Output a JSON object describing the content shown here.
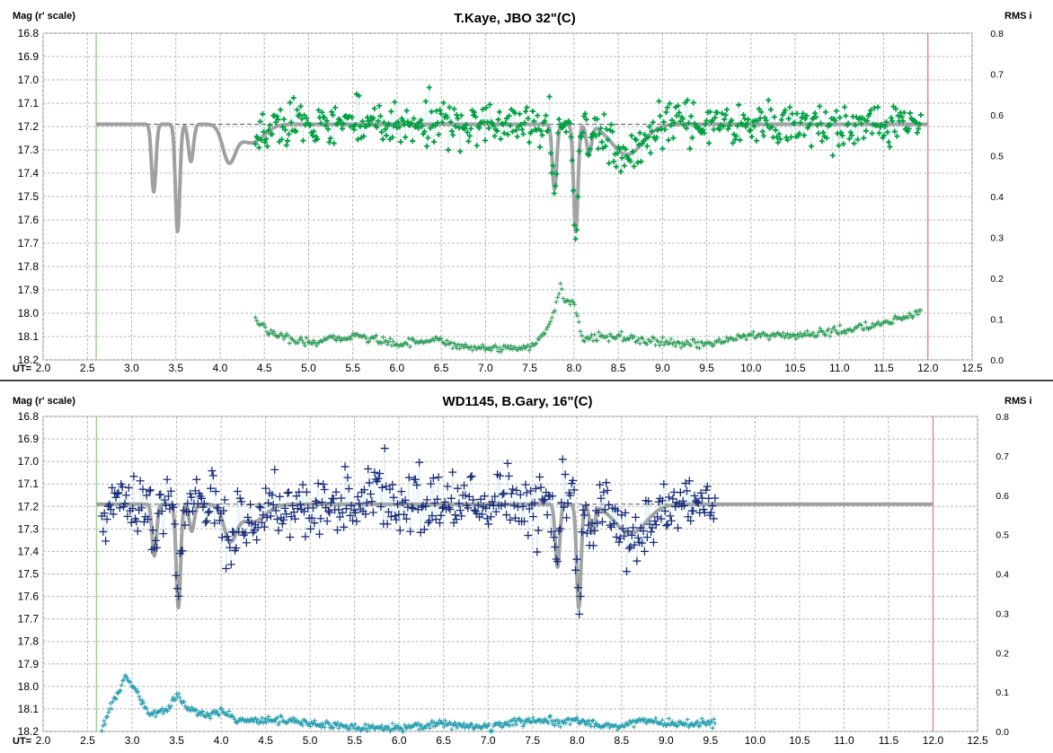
{
  "chart_data": [
    {
      "type": "scatter",
      "title": "T.Kaye, JBO 32\"(C)",
      "ylabel": "Mag (r' scale)",
      "ylabel_right": "RMS i",
      "xlabel": "UT=",
      "xlim": [
        2.0,
        12.5
      ],
      "ylim": [
        16.8,
        18.2
      ],
      "y_inverted": true,
      "y2lim": [
        0.0,
        0.8
      ],
      "grid": true,
      "x_ticks": [
        "2.0",
        "2.5",
        "3.0",
        "3.5",
        "4.0",
        "4.5",
        "5.0",
        "5.5",
        "6.0",
        "6.5",
        "7.0",
        "7.5",
        "8.0",
        "8.5",
        "9.0",
        "9.5",
        "10.0",
        "10.5",
        "11.0",
        "11.5",
        "12.0",
        "12.5"
      ],
      "y_ticks": [
        "16.8",
        "16.9",
        "17.0",
        "17.1",
        "17.2",
        "17.3",
        "17.4",
        "17.5",
        "17.6",
        "17.7",
        "17.8",
        "17.9",
        "18.0",
        "18.1",
        "18.2"
      ],
      "y2_ticks": [
        "0.0",
        "0.1",
        "0.2",
        "0.3",
        "0.4",
        "0.5",
        "0.6",
        "0.7",
        "0.8"
      ],
      "start_ut": 2.6,
      "end_ut": 12.0,
      "reference_mag": 17.19,
      "model": {
        "baseline": 17.19,
        "dips": [
          {
            "ut": 3.25,
            "depth": 0.29,
            "width": 0.035
          },
          {
            "ut": 3.52,
            "depth": 0.46,
            "width": 0.035
          },
          {
            "ut": 3.67,
            "depth": 0.16,
            "width": 0.04
          },
          {
            "ut": 4.1,
            "depth": 0.15,
            "width": 0.1
          },
          {
            "ut": 4.35,
            "depth": 0.08,
            "width": 0.2
          },
          {
            "ut": 7.78,
            "depth": 0.28,
            "width": 0.035
          },
          {
            "ut": 8.02,
            "depth": 0.46,
            "width": 0.035
          },
          {
            "ut": 8.17,
            "depth": 0.12,
            "width": 0.04
          },
          {
            "ut": 8.6,
            "depth": 0.13,
            "width": 0.25
          }
        ]
      },
      "series": [
        {
          "kind": "mag",
          "ut_start": 4.4,
          "ut_end": 11.92,
          "count": 560,
          "scatter": 0.045,
          "color": "#00a040",
          "marker": "+"
        },
        {
          "kind": "rms",
          "ut_start": 4.4,
          "ut_end": 11.92,
          "count": 470,
          "color": "#2e9e58",
          "marker": "+",
          "profile": [
            [
              4.4,
              0.1
            ],
            [
              4.6,
              0.06
            ],
            [
              4.8,
              0.05
            ],
            [
              5.0,
              0.04
            ],
            [
              5.5,
              0.06
            ],
            [
              6.0,
              0.04
            ],
            [
              6.4,
              0.05
            ],
            [
              6.8,
              0.03
            ],
            [
              7.2,
              0.03
            ],
            [
              7.5,
              0.03
            ],
            [
              7.65,
              0.06
            ],
            [
              7.75,
              0.1
            ],
            [
              7.85,
              0.18
            ],
            [
              7.9,
              0.14
            ],
            [
              8.0,
              0.14
            ],
            [
              8.1,
              0.05
            ],
            [
              8.5,
              0.06
            ],
            [
              8.7,
              0.05
            ],
            [
              9.0,
              0.04
            ],
            [
              9.5,
              0.04
            ],
            [
              10.0,
              0.06
            ],
            [
              10.5,
              0.06
            ],
            [
              11.0,
              0.07
            ],
            [
              11.5,
              0.09
            ],
            [
              11.7,
              0.1
            ],
            [
              11.92,
              0.12
            ]
          ]
        }
      ]
    },
    {
      "type": "scatter",
      "title": "WD1145, B.Gary, 16\"(C)",
      "ylabel": "Mag (r' scale)",
      "ylabel_right": "RMS i",
      "xlabel": "UT=",
      "xlim": [
        2.0,
        12.5
      ],
      "ylim": [
        16.8,
        18.2
      ],
      "y_inverted": true,
      "y2lim": [
        0.0,
        0.8
      ],
      "grid": true,
      "x_ticks": [
        "2.0",
        "2.5",
        "3.0",
        "3.5",
        "4.0",
        "4.5",
        "5.0",
        "5.5",
        "6.0",
        "6.5",
        "7.0",
        "7.5",
        "8.0",
        "8.5",
        "9.0",
        "9.5",
        "10.0",
        "10.5",
        "11.0",
        "11.5",
        "12.0",
        "12.5"
      ],
      "y_ticks": [
        "16.8",
        "16.9",
        "17.0",
        "17.1",
        "17.2",
        "17.3",
        "17.4",
        "17.5",
        "17.6",
        "17.7",
        "17.8",
        "17.9",
        "18.0",
        "18.1",
        "18.2"
      ],
      "y2_ticks": [
        "0.0",
        "0.1",
        "0.2",
        "0.3",
        "0.4",
        "0.5",
        "0.6",
        "0.7",
        "0.8"
      ],
      "start_ut": 2.6,
      "end_ut": 12.0,
      "reference_mag": 17.19,
      "model": {
        "baseline": 17.19,
        "dips": [
          {
            "ut": 3.25,
            "depth": 0.23,
            "width": 0.035
          },
          {
            "ut": 3.52,
            "depth": 0.46,
            "width": 0.035
          },
          {
            "ut": 3.67,
            "depth": 0.12,
            "width": 0.04
          },
          {
            "ut": 4.1,
            "depth": 0.15,
            "width": 0.1
          },
          {
            "ut": 4.35,
            "depth": 0.08,
            "width": 0.2
          },
          {
            "ut": 7.78,
            "depth": 0.28,
            "width": 0.035
          },
          {
            "ut": 8.02,
            "depth": 0.46,
            "width": 0.035
          },
          {
            "ut": 8.17,
            "depth": 0.12,
            "width": 0.04
          },
          {
            "ut": 8.6,
            "depth": 0.13,
            "width": 0.25
          }
        ]
      },
      "series": [
        {
          "kind": "mag",
          "ut_start": 2.66,
          "ut_end": 9.55,
          "count": 480,
          "scatter": 0.07,
          "color": "#1a2e7a",
          "marker": "+"
        },
        {
          "kind": "rms",
          "ut_start": 2.66,
          "ut_end": 9.55,
          "count": 560,
          "color": "#2aa0b0",
          "marker": "+",
          "profile": [
            [
              2.66,
              0.0
            ],
            [
              2.75,
              0.06
            ],
            [
              2.85,
              0.1
            ],
            [
              2.92,
              0.14
            ],
            [
              3.05,
              0.1
            ],
            [
              3.2,
              0.04
            ],
            [
              3.4,
              0.06
            ],
            [
              3.52,
              0.09
            ],
            [
              3.62,
              0.06
            ],
            [
              3.8,
              0.04
            ],
            [
              4.0,
              0.05
            ],
            [
              4.2,
              0.03
            ],
            [
              4.6,
              0.03
            ],
            [
              5.0,
              0.02
            ],
            [
              5.5,
              0.01
            ],
            [
              6.0,
              0.01
            ],
            [
              6.5,
              0.02
            ],
            [
              7.0,
              0.01
            ],
            [
              7.5,
              0.03
            ],
            [
              7.8,
              0.02
            ],
            [
              8.0,
              0.03
            ],
            [
              8.2,
              0.02
            ],
            [
              8.5,
              0.01
            ],
            [
              8.7,
              0.03
            ],
            [
              9.0,
              0.02
            ],
            [
              9.55,
              0.02
            ]
          ]
        }
      ]
    }
  ]
}
